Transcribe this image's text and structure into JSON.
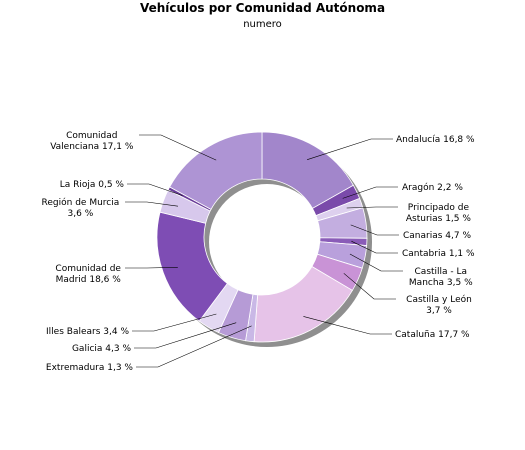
{
  "chart_data": {
    "type": "pie",
    "variant": "donut",
    "title": "Vehículos por Comunidad Autónoma",
    "subtitle": "numero",
    "slices": [
      {
        "label": [
          "Andalucía 16,8 %"
        ],
        "value": 16.8,
        "color": "#a286cb"
      },
      {
        "label": [
          "Aragón 2,2 %"
        ],
        "value": 2.2,
        "color": "#7a4aaa"
      },
      {
        "label": [
          "Principado de",
          "Asturias 1,5 %"
        ],
        "value": 1.5,
        "color": "#ddd0ee"
      },
      {
        "label": [
          "Canarias 4,7 %"
        ],
        "value": 4.7,
        "color": "#c3aee0"
      },
      {
        "label": [
          "Cantabria 1,1 %"
        ],
        "value": 1.1,
        "color": "#8a5cb8"
      },
      {
        "label": [
          "Castilla - La",
          "Mancha 3,5 %"
        ],
        "value": 3.5,
        "color": "#b9a0dc"
      },
      {
        "label": [
          "Castilla y León",
          "3,7 %"
        ],
        "value": 3.7,
        "color": "#c993d6"
      },
      {
        "label": [
          "Cataluña 17,7 %"
        ],
        "value": 17.7,
        "color": "#e6c3e8"
      },
      {
        "label": [
          "Extremadura 1,3 %"
        ],
        "value": 1.3,
        "color": "#c9b8e6"
      },
      {
        "label": [
          "Galicia 4,3 %"
        ],
        "value": 4.3,
        "color": "#b69bd6"
      },
      {
        "label": [
          "Illes Balears 3,4 %"
        ],
        "value": 3.4,
        "color": "#e3d8f2"
      },
      {
        "label": [
          "Comunidad de",
          "Madrid 18,6 %"
        ],
        "value": 18.6,
        "color": "#7e4db4"
      },
      {
        "label": [
          "Región de Murcia",
          "3,6 %"
        ],
        "value": 3.6,
        "color": "#d7c8ec"
      },
      {
        "label": [
          "La Rioja 0,5 %"
        ],
        "value": 0.5,
        "color": "#6a3d99"
      },
      {
        "label": [
          "Comunidad",
          "Valenciana 17,1 %"
        ],
        "value": 17.1,
        "color": "#ae94d4"
      }
    ]
  }
}
